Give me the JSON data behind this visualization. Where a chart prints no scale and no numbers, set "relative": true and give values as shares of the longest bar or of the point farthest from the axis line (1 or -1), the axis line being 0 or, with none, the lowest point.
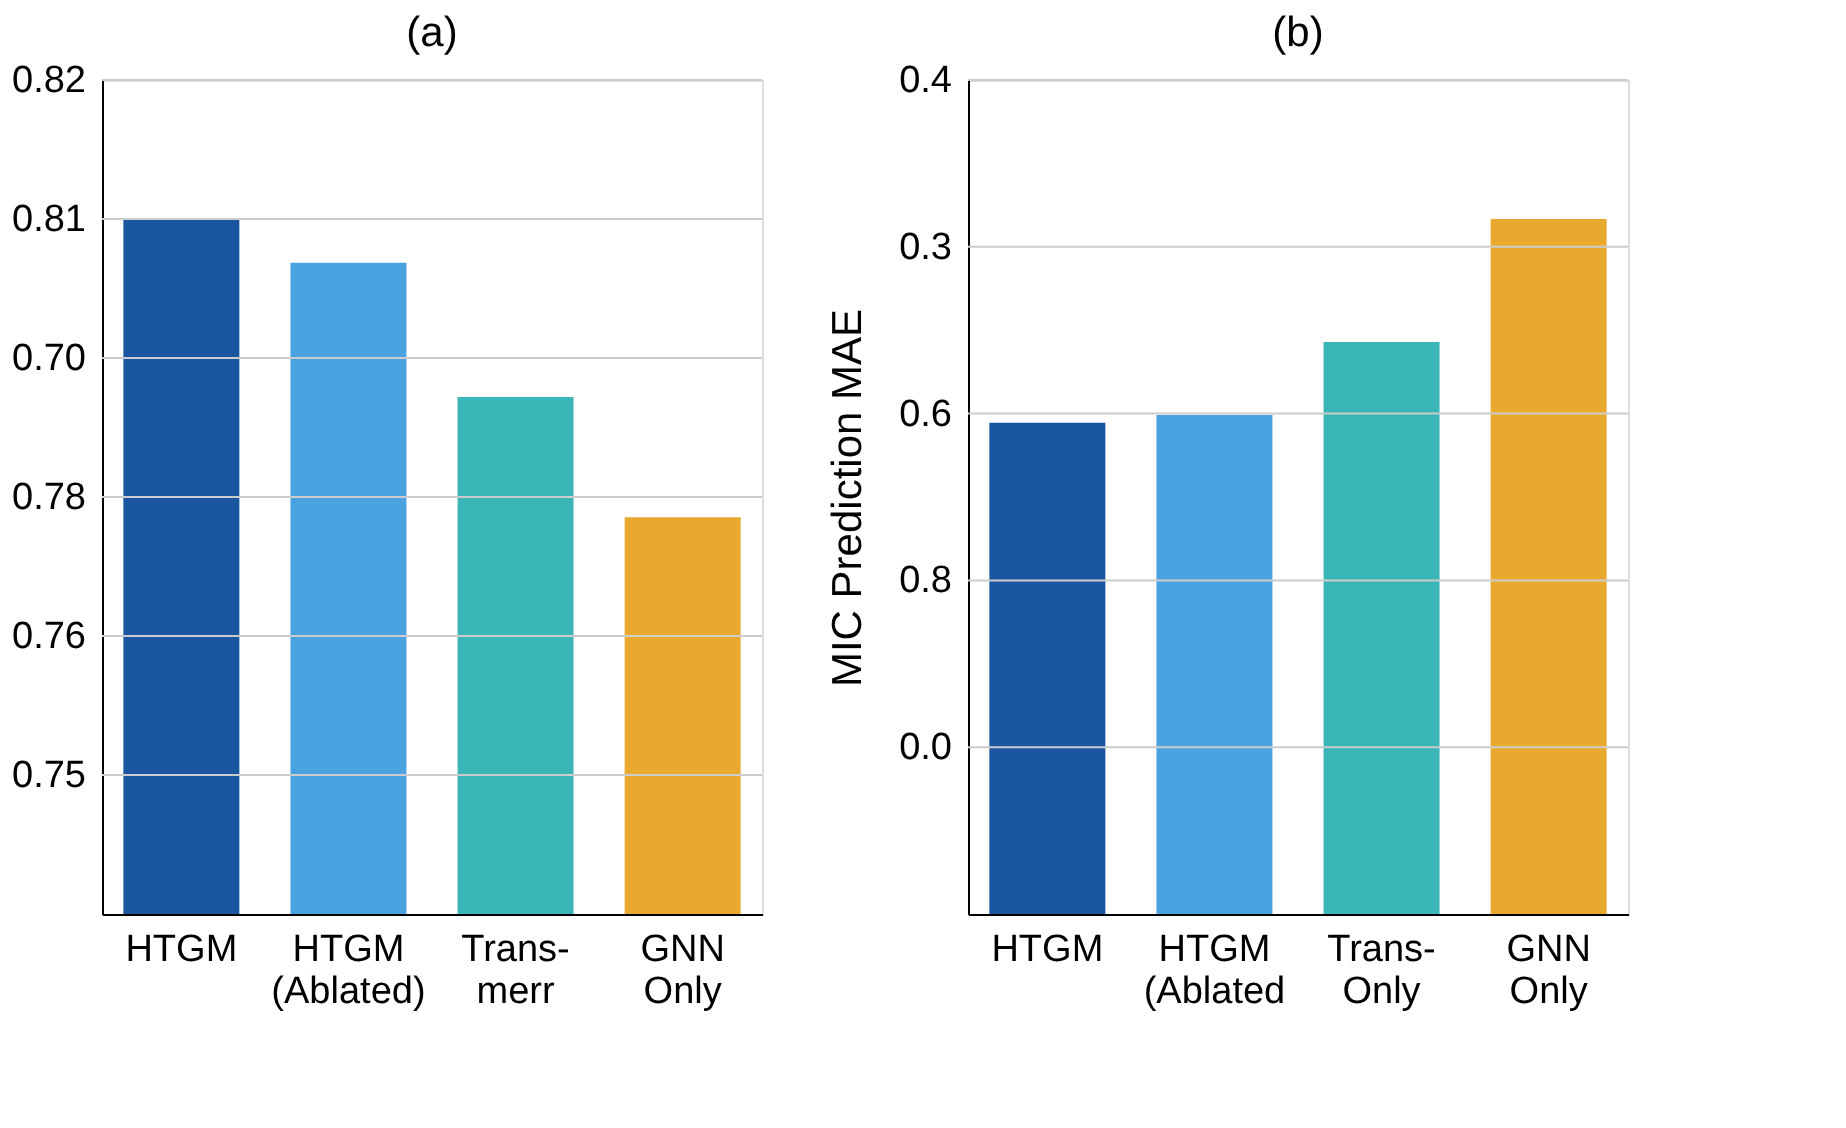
{
  "chart_data": [
    {
      "type": "bar",
      "title": "(a)",
      "relative": true,
      "categories": [
        "HTGM",
        "HTGM\n(Ablated)",
        "Trans-\nmerr",
        "GNN\nOnly"
      ],
      "values": [
        1,
        0.937,
        0.744,
        0.571
      ],
      "colors": [
        "#1a56a0",
        "#4aa3e0",
        "#3ab5b8",
        "#e8a92e"
      ],
      "annotations": [
        "0.82",
        "0.81",
        "0.70",
        "0.78",
        "0.76",
        "0.75"
      ],
      "grid": "y"
    },
    {
      "type": "bar",
      "title": "(b)",
      "relative": true,
      "ylabel": "MIC Prediction MAE",
      "categories": [
        "HTGM",
        "HTGM\n(Ablated",
        "Trans-\nOnly",
        "GNN\nOnly"
      ],
      "values": [
        0.707,
        0.718,
        0.823,
        1
      ],
      "colors": [
        "#1a56a0",
        "#4aa3e0",
        "#3ab5b8",
        "#e8a92e"
      ],
      "annotations": [
        "0.4",
        "0.3",
        "0.6",
        "0.8",
        "0.0"
      ],
      "grid": "y"
    }
  ]
}
